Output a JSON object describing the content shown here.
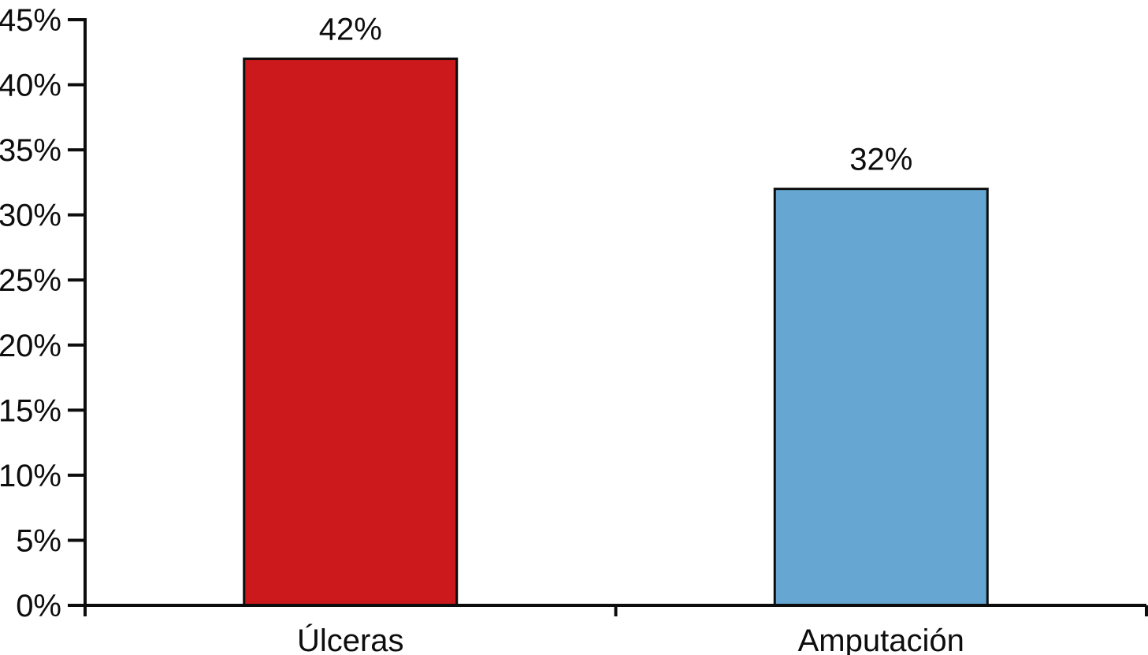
{
  "chart_data": {
    "type": "bar",
    "title": "",
    "xlabel": "",
    "ylabel": "",
    "categories": [
      "Úlceras",
      "Amputación"
    ],
    "values": [
      42,
      32
    ],
    "value_labels": [
      "42%",
      "32%"
    ],
    "bar_colors": [
      "#cc1a1c",
      "#66a6d2"
    ],
    "ylim": [
      0,
      45
    ],
    "ytick_step": 5,
    "ytick_labels": [
      "0%",
      "5%",
      "10%",
      "15%",
      "20%",
      "25%",
      "30%",
      "35%",
      "40%",
      "45%"
    ],
    "grid": false,
    "legend": "none",
    "axis_color": "#0d0d0d",
    "background": "#ffffff"
  }
}
